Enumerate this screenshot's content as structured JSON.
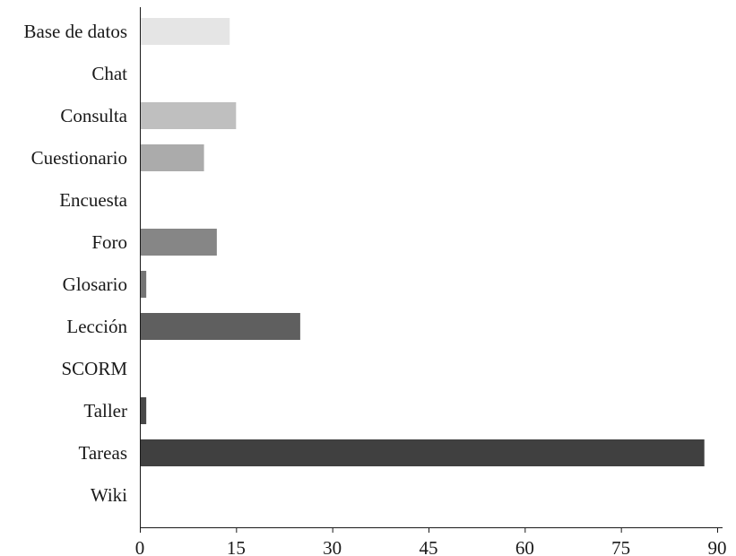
{
  "chart_data": {
    "type": "bar",
    "orientation": "horizontal",
    "title": "",
    "xlabel": "",
    "ylabel": "",
    "categories": [
      "Base de datos",
      "Chat",
      "Consulta",
      "Cuestionario",
      "Encuesta",
      "Foro",
      "Glosario",
      "Lección",
      "SCORM",
      "Taller",
      "Tareas",
      "Wiki"
    ],
    "values": [
      14,
      0,
      15,
      10,
      0,
      12,
      1,
      25,
      0,
      1,
      88,
      0
    ],
    "bar_colors": [
      "#e5e5e5",
      "#d9d9d9",
      "#bfbfbf",
      "#ababab",
      "#999999",
      "#868686",
      "#747474",
      "#5f5f5f",
      "#545454",
      "#484848",
      "#404040",
      "#333333"
    ],
    "xlim": [
      0,
      90
    ],
    "xticks": [
      0,
      15,
      30,
      45,
      60,
      75,
      90
    ],
    "grid": false,
    "legend": "none"
  }
}
